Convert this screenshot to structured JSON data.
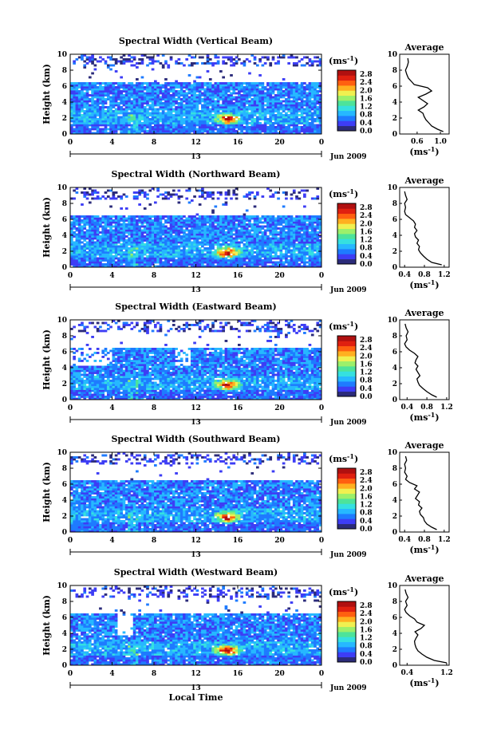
{
  "figure": {
    "xlabel": "Local Time",
    "date_label": "Jun 2009",
    "day_marker": "13",
    "unit_label": "(ms",
    "unit_exp": "-1",
    "unit_close": ")",
    "ylabel": "Height (km)",
    "avg_title": "Average"
  },
  "chart_data": [
    {
      "type": "heatmap",
      "title": "Spectral Width (Vertical Beam)",
      "x_ticks": [
        "0",
        "4",
        "8",
        "12",
        "16",
        "20",
        "0"
      ],
      "y_ticks": [
        "0",
        "2",
        "4",
        "6",
        "8",
        "10"
      ],
      "xlim": [
        0,
        24
      ],
      "ylim": [
        0,
        10
      ],
      "colorbar_ticks": [
        "0.0",
        "0.4",
        "0.8",
        "1.2",
        "1.6",
        "2.0",
        "2.4",
        "2.8"
      ],
      "colorbar_range": [
        0,
        3.0
      ],
      "avg_profile": {
        "x_ticks": [
          "0.6",
          "1.0"
        ],
        "xlim": [
          0.3,
          1.15
        ],
        "y_ticks": [
          "0",
          "2",
          "4",
          "6",
          "8",
          "10"
        ],
        "height_km": [
          0.3,
          0.6,
          1.0,
          1.4,
          1.8,
          2.2,
          2.6,
          3.0,
          3.4,
          3.8,
          4.2,
          4.6,
          5.0,
          5.4,
          5.8,
          6.2,
          6.6,
          7.0,
          7.5,
          8.0,
          8.5,
          9.0,
          9.5
        ],
        "width_ms": [
          1.05,
          0.95,
          0.85,
          0.8,
          0.75,
          0.72,
          0.7,
          0.62,
          0.72,
          0.78,
          0.7,
          0.62,
          0.75,
          0.85,
          0.78,
          0.55,
          0.5,
          0.45,
          0.42,
          0.4,
          0.43,
          0.45,
          0.44
        ]
      }
    },
    {
      "type": "heatmap",
      "title": "Spectral Width (Northward Beam)",
      "x_ticks": [
        "0",
        "4",
        "8",
        "12",
        "16",
        "20",
        "0"
      ],
      "y_ticks": [
        "0",
        "2",
        "4",
        "6",
        "8",
        "10"
      ],
      "xlim": [
        0,
        24
      ],
      "ylim": [
        0,
        10
      ],
      "colorbar_ticks": [
        "0.0",
        "0.4",
        "0.8",
        "1.2",
        "1.6",
        "2.0",
        "2.4",
        "2.8"
      ],
      "colorbar_range": [
        0,
        3.0
      ],
      "avg_profile": {
        "x_ticks": [
          "0.4",
          "0.8",
          "1.2"
        ],
        "xlim": [
          0.3,
          1.3
        ],
        "y_ticks": [
          "0",
          "2",
          "4",
          "6",
          "8",
          "10"
        ],
        "height_km": [
          0.3,
          0.6,
          1.0,
          1.4,
          1.8,
          2.2,
          2.6,
          3.0,
          3.4,
          3.8,
          4.2,
          4.6,
          5.0,
          5.4,
          5.8,
          6.2,
          6.6,
          7.0,
          7.5,
          8.0,
          8.5,
          9.0,
          9.5
        ],
        "width_ms": [
          1.15,
          0.95,
          0.85,
          0.78,
          0.72,
          0.68,
          0.7,
          0.65,
          0.68,
          0.62,
          0.6,
          0.65,
          0.6,
          0.62,
          0.58,
          0.5,
          0.42,
          0.4,
          0.42,
          0.4,
          0.45,
          0.42,
          0.4
        ]
      }
    },
    {
      "type": "heatmap",
      "title": "Spectral Width (Eastward Beam)",
      "x_ticks": [
        "0",
        "4",
        "8",
        "12",
        "16",
        "20",
        "0"
      ],
      "y_ticks": [
        "0",
        "2",
        "4",
        "6",
        "8",
        "10"
      ],
      "xlim": [
        0,
        24
      ],
      "ylim": [
        0,
        10
      ],
      "colorbar_ticks": [
        "0.0",
        "0.4",
        "0.8",
        "1.2",
        "1.6",
        "2.0",
        "2.4",
        "2.8"
      ],
      "colorbar_range": [
        0,
        3.0
      ],
      "avg_profile": {
        "x_ticks": [
          "0.4",
          "0.8",
          "1.2"
        ],
        "xlim": [
          0.25,
          1.25
        ],
        "y_ticks": [
          "0",
          "2",
          "4",
          "6",
          "8",
          "10"
        ],
        "height_km": [
          0.3,
          0.6,
          1.0,
          1.4,
          1.8,
          2.2,
          2.6,
          3.0,
          3.4,
          3.8,
          4.2,
          4.6,
          5.0,
          5.4,
          5.8,
          6.2,
          6.6,
          7.0,
          7.5,
          8.0,
          8.5,
          9.0,
          9.5
        ],
        "width_ms": [
          1.0,
          0.9,
          0.8,
          0.72,
          0.65,
          0.62,
          0.6,
          0.66,
          0.62,
          0.58,
          0.62,
          0.56,
          0.58,
          0.62,
          0.55,
          0.45,
          0.38,
          0.35,
          0.4,
          0.38,
          0.42,
          0.38,
          0.36
        ]
      }
    },
    {
      "type": "heatmap",
      "title": "Spectral Width (Southward Beam)",
      "x_ticks": [
        "0",
        "4",
        "8",
        "12",
        "16",
        "20",
        "0"
      ],
      "y_ticks": [
        "0",
        "2",
        "4",
        "6",
        "8",
        "10"
      ],
      "xlim": [
        0,
        24
      ],
      "ylim": [
        0,
        10
      ],
      "colorbar_ticks": [
        "0.0",
        "0.4",
        "0.8",
        "1.2",
        "1.6",
        "2.0",
        "2.4",
        "2.8"
      ],
      "colorbar_range": [
        0,
        3.0
      ],
      "avg_profile": {
        "x_ticks": [
          "0.4",
          "0.8",
          "1.2"
        ],
        "xlim": [
          0.3,
          1.3
        ],
        "y_ticks": [
          "0",
          "2",
          "4",
          "6",
          "8",
          "10"
        ],
        "height_km": [
          0.3,
          0.6,
          1.0,
          1.4,
          1.8,
          2.2,
          2.6,
          3.0,
          3.4,
          3.8,
          4.2,
          4.6,
          5.0,
          5.4,
          5.8,
          6.2,
          6.6,
          7.0,
          7.5,
          8.0,
          8.5,
          9.0,
          9.5
        ],
        "width_ms": [
          1.05,
          0.95,
          0.85,
          0.8,
          0.78,
          0.72,
          0.7,
          0.75,
          0.68,
          0.7,
          0.62,
          0.66,
          0.7,
          0.6,
          0.65,
          0.5,
          0.42,
          0.45,
          0.4,
          0.42,
          0.4,
          0.44,
          0.42
        ]
      }
    },
    {
      "type": "heatmap",
      "title": "Spectral Width (Westward Beam)",
      "x_ticks": [
        "0",
        "4",
        "8",
        "12",
        "16",
        "20",
        "0"
      ],
      "y_ticks": [
        "0",
        "2",
        "4",
        "6",
        "8",
        "10"
      ],
      "xlim": [
        0,
        24
      ],
      "ylim": [
        0,
        10
      ],
      "colorbar_ticks": [
        "0.0",
        "0.4",
        "0.8",
        "1.2",
        "1.6",
        "2.0",
        "2.4",
        "2.8"
      ],
      "colorbar_range": [
        0,
        3.0
      ],
      "avg_profile": {
        "x_ticks": [
          "0.4",
          "1.2"
        ],
        "xlim": [
          0.25,
          1.25
        ],
        "y_ticks": [
          "0",
          "2",
          "4",
          "6",
          "8",
          "10"
        ],
        "height_km": [
          0.3,
          0.6,
          1.0,
          1.4,
          1.8,
          2.2,
          2.6,
          3.0,
          3.4,
          3.8,
          4.2,
          4.6,
          5.0,
          5.4,
          5.8,
          6.2,
          6.6,
          7.0,
          7.5,
          8.0,
          8.5,
          9.0,
          9.5
        ],
        "width_ms": [
          1.2,
          0.95,
          0.8,
          0.7,
          0.62,
          0.58,
          0.56,
          0.55,
          0.58,
          0.62,
          0.56,
          0.68,
          0.75,
          0.6,
          0.55,
          0.45,
          0.38,
          0.35,
          0.4,
          0.37,
          0.42,
          0.38,
          0.36
        ]
      }
    }
  ],
  "colors": {
    "colormap": [
      "#2b2b7a",
      "#3d3df5",
      "#1e7bff",
      "#26b8ff",
      "#35e0e0",
      "#4de39a",
      "#9cf06a",
      "#f0f050",
      "#ffb020",
      "#ff6010",
      "#e02010",
      "#b01010"
    ]
  }
}
